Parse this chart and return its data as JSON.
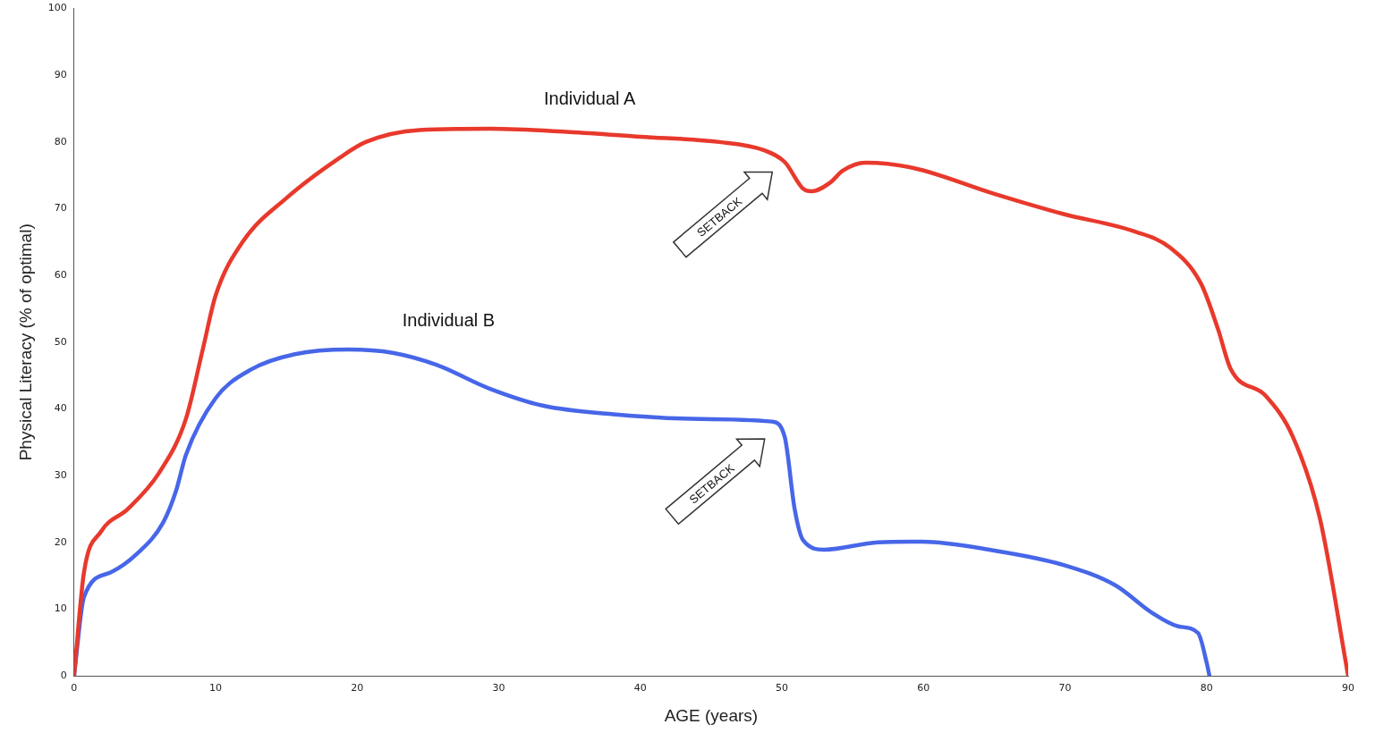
{
  "chart_data": {
    "type": "line",
    "xlabel": "AGE (years)",
    "ylabel": "Physical Literacy (% of optimal)",
    "xlim": [
      0,
      90
    ],
    "ylim": [
      0,
      100
    ],
    "xticks": [
      0,
      10,
      20,
      30,
      40,
      50,
      60,
      70,
      80,
      90
    ],
    "yticks": [
      0,
      10,
      20,
      30,
      40,
      50,
      60,
      70,
      80,
      90,
      100
    ],
    "grid": false,
    "legend": false,
    "marker": "none",
    "line_style": "solid",
    "series": [
      {
        "name": "Individual A",
        "color": "#e8392c",
        "x": [
          0,
          0.7,
          1.9,
          3.8,
          6,
          7.9,
          9.1,
          10,
          11.9,
          15,
          18.8,
          20.6,
          24.4,
          29.4,
          35,
          40,
          45.6,
          48.7,
          50.2,
          51.5,
          52.1,
          53.4,
          54.3,
          55.9,
          59.3,
          64.9,
          69.9,
          74.9,
          77.4,
          79.6,
          80.8,
          81.7,
          84.2,
          86.1,
          88,
          90
        ],
        "values": [
          0,
          15.5,
          21.6,
          25,
          30.4,
          38.5,
          49,
          57,
          65,
          71.6,
          77.7,
          80,
          81.8,
          82,
          81.5,
          80.8,
          80,
          78.8,
          77,
          73,
          72.6,
          73.9,
          75.7,
          76.9,
          76.1,
          72.3,
          69.2,
          66.6,
          64.2,
          58.8,
          52,
          46,
          41.9,
          35.8,
          23.6,
          0
        ]
      },
      {
        "name": "Individual B",
        "color": "#4766e8",
        "x": [
          0,
          0.7,
          2.6,
          4.4,
          6.3,
          7.2,
          7.9,
          10,
          12.5,
          15.6,
          19.4,
          22.5,
          25.6,
          29.4,
          33.1,
          38.1,
          44.3,
          49.3,
          50.2,
          50.9,
          51.5,
          53,
          56.8,
          59.9,
          64.9,
          69.9,
          73.6,
          76.1,
          78,
          79.4,
          80,
          80.2
        ],
        "values": [
          0,
          11.8,
          15.5,
          18.2,
          23,
          27.7,
          33.1,
          41.6,
          45.9,
          48.2,
          48.9,
          48.4,
          46.6,
          43,
          40.5,
          39.2,
          38.5,
          38.1,
          35.8,
          25,
          20.3,
          18.9,
          20,
          20.1,
          18.8,
          16.6,
          13.5,
          9.5,
          7.4,
          6.4,
          2,
          0
        ]
      }
    ],
    "annotations": [
      "SETBACK",
      "SETBACK"
    ]
  }
}
